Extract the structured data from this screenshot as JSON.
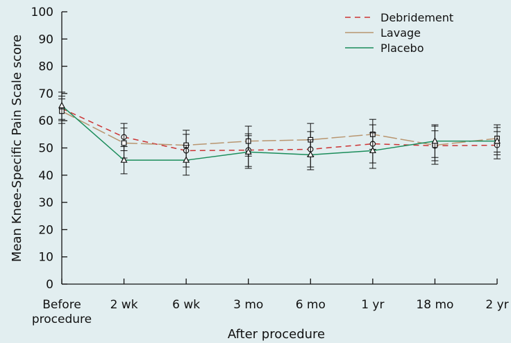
{
  "chart_data": {
    "type": "line",
    "title": "",
    "xlabel": "After procedure",
    "ylabel": "Mean Knee-Specific Pain Scale score",
    "ylim": [
      0,
      100
    ],
    "yticks": [
      0,
      10,
      20,
      30,
      40,
      50,
      60,
      70,
      80,
      90,
      100
    ],
    "categories": [
      "Before procedure",
      "2 wk",
      "6 wk",
      "3 mo",
      "6 mo",
      "1 yr",
      "18 mo",
      "2 yr"
    ],
    "category_lines": [
      [
        "Before",
        "procedure"
      ],
      [
        "2 wk"
      ],
      [
        "6 wk"
      ],
      [
        "3 mo"
      ],
      [
        "6 mo"
      ],
      [
        "1 yr"
      ],
      [
        "18 mo"
      ],
      [
        "2 yr"
      ]
    ],
    "grid": false,
    "legend_position": "top-right",
    "series": [
      {
        "name": "Debridement",
        "color": "#cc3333",
        "dash": "8,6",
        "marker": "circle",
        "values": [
          64.5,
          54.0,
          49.0,
          49.2,
          49.5,
          51.5,
          50.8,
          51.0
        ],
        "error": [
          4.5,
          5.0,
          6.0,
          6.0,
          6.5,
          7.0,
          5.5,
          5.0
        ]
      },
      {
        "name": "Lavage",
        "color": "#b8956f",
        "dash": "20,5",
        "marker": "square",
        "values": [
          63.5,
          51.8,
          51.0,
          52.5,
          53.0,
          55.0,
          51.0,
          53.5
        ],
        "error": [
          4.5,
          5.5,
          5.5,
          5.5,
          6.0,
          5.5,
          7.0,
          5.0
        ]
      },
      {
        "name": "Placebo",
        "color": "#1a8c5a",
        "dash": "",
        "marker": "triangle",
        "values": [
          65.5,
          45.5,
          45.5,
          48.5,
          47.5,
          49.0,
          52.5,
          52.5
        ],
        "error": [
          5.0,
          5.0,
          5.5,
          6.0,
          5.5,
          6.5,
          6.0,
          5.0
        ]
      }
    ]
  }
}
